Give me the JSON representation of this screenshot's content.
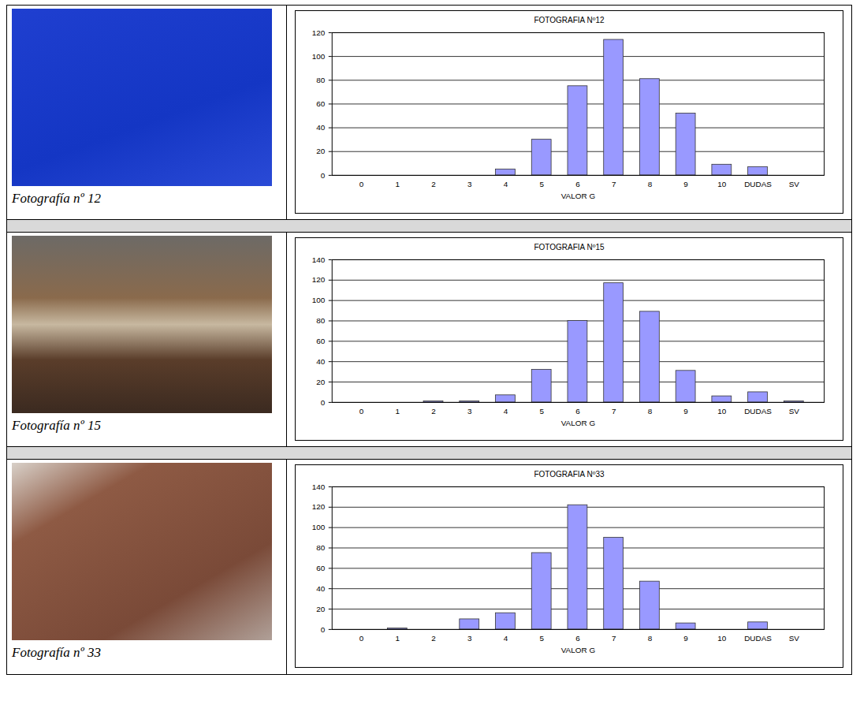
{
  "chart_data": [
    {
      "type": "bar",
      "title": "FOTOGRAFIA Nº12",
      "x_label": "VALOR G",
      "categories": [
        "0",
        "1",
        "2",
        "3",
        "4",
        "5",
        "6",
        "7",
        "8",
        "9",
        "10",
        "DUDAS",
        "SV"
      ],
      "values": [
        0,
        0,
        0,
        0,
        5,
        30,
        75,
        114,
        81,
        52,
        9,
        7,
        0
      ],
      "color": "#9999ff",
      "ylim": [
        0,
        120
      ],
      "yticks": [
        0,
        20,
        40,
        60,
        80,
        100,
        120
      ],
      "grid": true
    },
    {
      "type": "bar",
      "title": "FOTOGRAFIA Nº15",
      "x_label": "VALOR G",
      "categories": [
        "0",
        "1",
        "2",
        "3",
        "4",
        "5",
        "6",
        "7",
        "8",
        "9",
        "10",
        "DUDAS",
        "SV"
      ],
      "values": [
        0,
        0,
        1,
        1,
        7,
        32,
        80,
        117,
        89,
        31,
        6,
        10,
        1
      ],
      "color": "#9999ff",
      "ylim": [
        0,
        140
      ],
      "yticks": [
        0,
        20,
        40,
        60,
        80,
        100,
        120,
        140
      ],
      "grid": true
    },
    {
      "type": "bar",
      "title": "FOTOGRAFIA Nº33",
      "x_label": "VALOR G",
      "categories": [
        "0",
        "1",
        "2",
        "3",
        "4",
        "5",
        "6",
        "7",
        "8",
        "9",
        "10",
        "DUDAS",
        "SV"
      ],
      "values": [
        0,
        1,
        0,
        10,
        16,
        75,
        122,
        90,
        47,
        6,
        0,
        7,
        0
      ],
      "color": "#9999ff",
      "ylim": [
        0,
        140
      ],
      "yticks": [
        0,
        20,
        40,
        60,
        80,
        100,
        120,
        140
      ],
      "grid": true
    }
  ],
  "photos": [
    {
      "caption": "Fotografía nº 12"
    },
    {
      "caption": "Fotografía nº 15"
    },
    {
      "caption": "Fotografía nº 33"
    }
  ]
}
